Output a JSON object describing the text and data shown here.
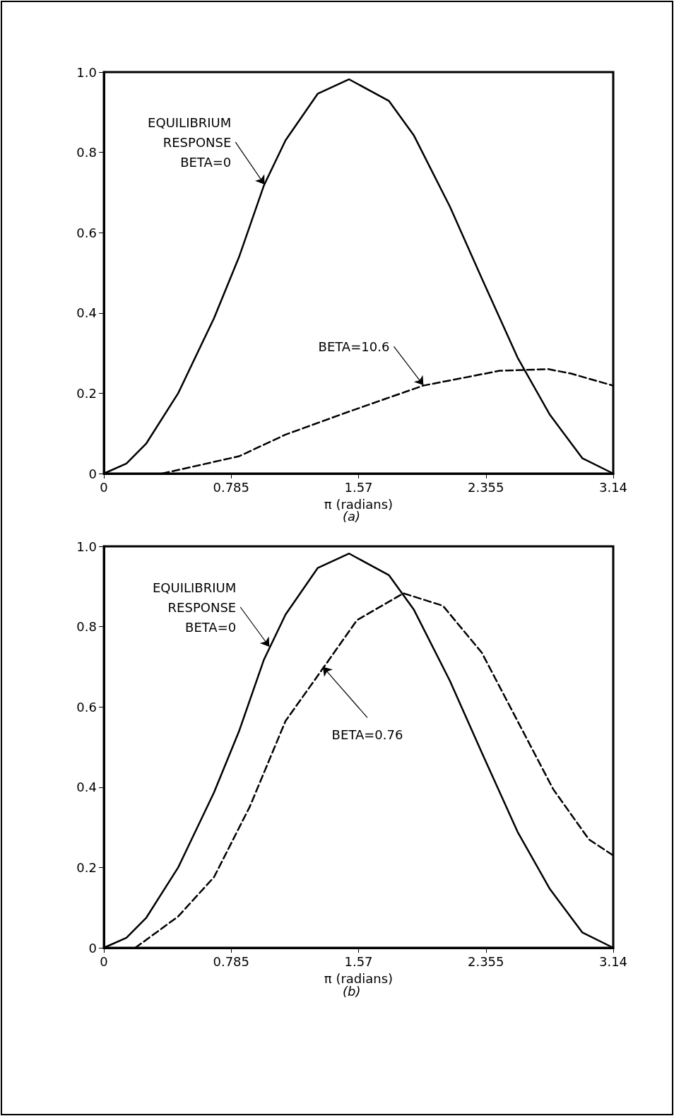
{
  "chart_data": [
    {
      "type": "line",
      "title": "(a)",
      "xlabel": "π (radians)",
      "xlim": [
        0,
        3.14
      ],
      "xticks": [
        0,
        0.785,
        1.57,
        2.355,
        3.14
      ],
      "ylim": [
        0,
        1.0
      ],
      "yticks": [
        0,
        0.2,
        0.4,
        0.6,
        0.8,
        {
          "value": 1.0,
          "label": "1.0"
        }
      ],
      "grid": false,
      "marker": "none",
      "series": [
        {
          "color": "#000000",
          "line_style": "solid",
          "x": [
            0,
            0.139,
            0.26,
            0.458,
            0.679,
            0.833,
            0.987,
            1.12,
            1.318,
            1.512,
            1.758,
            1.91,
            2.133,
            2.33,
            2.55,
            2.75,
            2.95,
            3.14
          ],
          "values": [
            0,
            0.025,
            0.074,
            0.2,
            0.387,
            0.539,
            0.718,
            0.83,
            0.946,
            0.982,
            0.928,
            0.843,
            0.665,
            0.486,
            0.289,
            0.146,
            0.038,
            0
          ]
        },
        {
          "color": "#000000",
          "line_style": "dashed",
          "x": [
            0.359,
            0.833,
            1.12,
            1.516,
            1.968,
            2.44,
            2.74,
            2.88,
            3.14
          ],
          "values": [
            0,
            0.043,
            0.097,
            0.155,
            0.219,
            0.256,
            0.26,
            0.249,
            0.219
          ]
        }
      ],
      "annotations": [
        {
          "text": "EQUILIBRIUM\nRESPONSE\nBETA=0",
          "x": 0.99,
          "y": 0.72
        },
        {
          "text": "BETA=10.6",
          "x": 1.97,
          "y": 0.22
        }
      ]
    },
    {
      "type": "line",
      "title": "(b)",
      "xlabel": "π (radians)",
      "xlim": [
        0,
        3.14
      ],
      "xticks": [
        0,
        0.785,
        1.57,
        2.355,
        3.14
      ],
      "ylim": [
        0,
        1.0
      ],
      "yticks": [
        0,
        0.2,
        0.4,
        0.6,
        0.8,
        {
          "value": 1.0,
          "label": "1.0"
        }
      ],
      "grid": false,
      "marker": "none",
      "series": [
        {
          "color": "#000000",
          "line_style": "solid",
          "x": [
            0,
            0.139,
            0.26,
            0.458,
            0.679,
            0.833,
            0.987,
            1.12,
            1.318,
            1.512,
            1.758,
            1.91,
            2.133,
            2.33,
            2.55,
            2.75,
            2.95,
            3.14
          ],
          "values": [
            0,
            0.025,
            0.074,
            0.2,
            0.387,
            0.539,
            0.718,
            0.83,
            0.946,
            0.982,
            0.928,
            0.843,
            0.665,
            0.486,
            0.289,
            0.146,
            0.038,
            0
          ]
        },
        {
          "color": "#000000",
          "line_style": "dashed",
          "x": [
            0.194,
            0.458,
            0.679,
            0.899,
            1.12,
            1.34,
            1.56,
            1.847,
            2.09,
            2.33,
            2.55,
            2.77,
            2.99,
            3.14
          ],
          "values": [
            0,
            0.078,
            0.176,
            0.351,
            0.565,
            0.69,
            0.816,
            0.883,
            0.852,
            0.735,
            0.565,
            0.395,
            0.27,
            0.23
          ]
        }
      ],
      "annotations": [
        {
          "text": "EQUILIBRIUM\nRESPONSE\nBETA=0",
          "x": 1.02,
          "y": 0.75
        },
        {
          "text": "BETA=0.76",
          "x": 1.35,
          "y": 0.7
        }
      ]
    }
  ]
}
